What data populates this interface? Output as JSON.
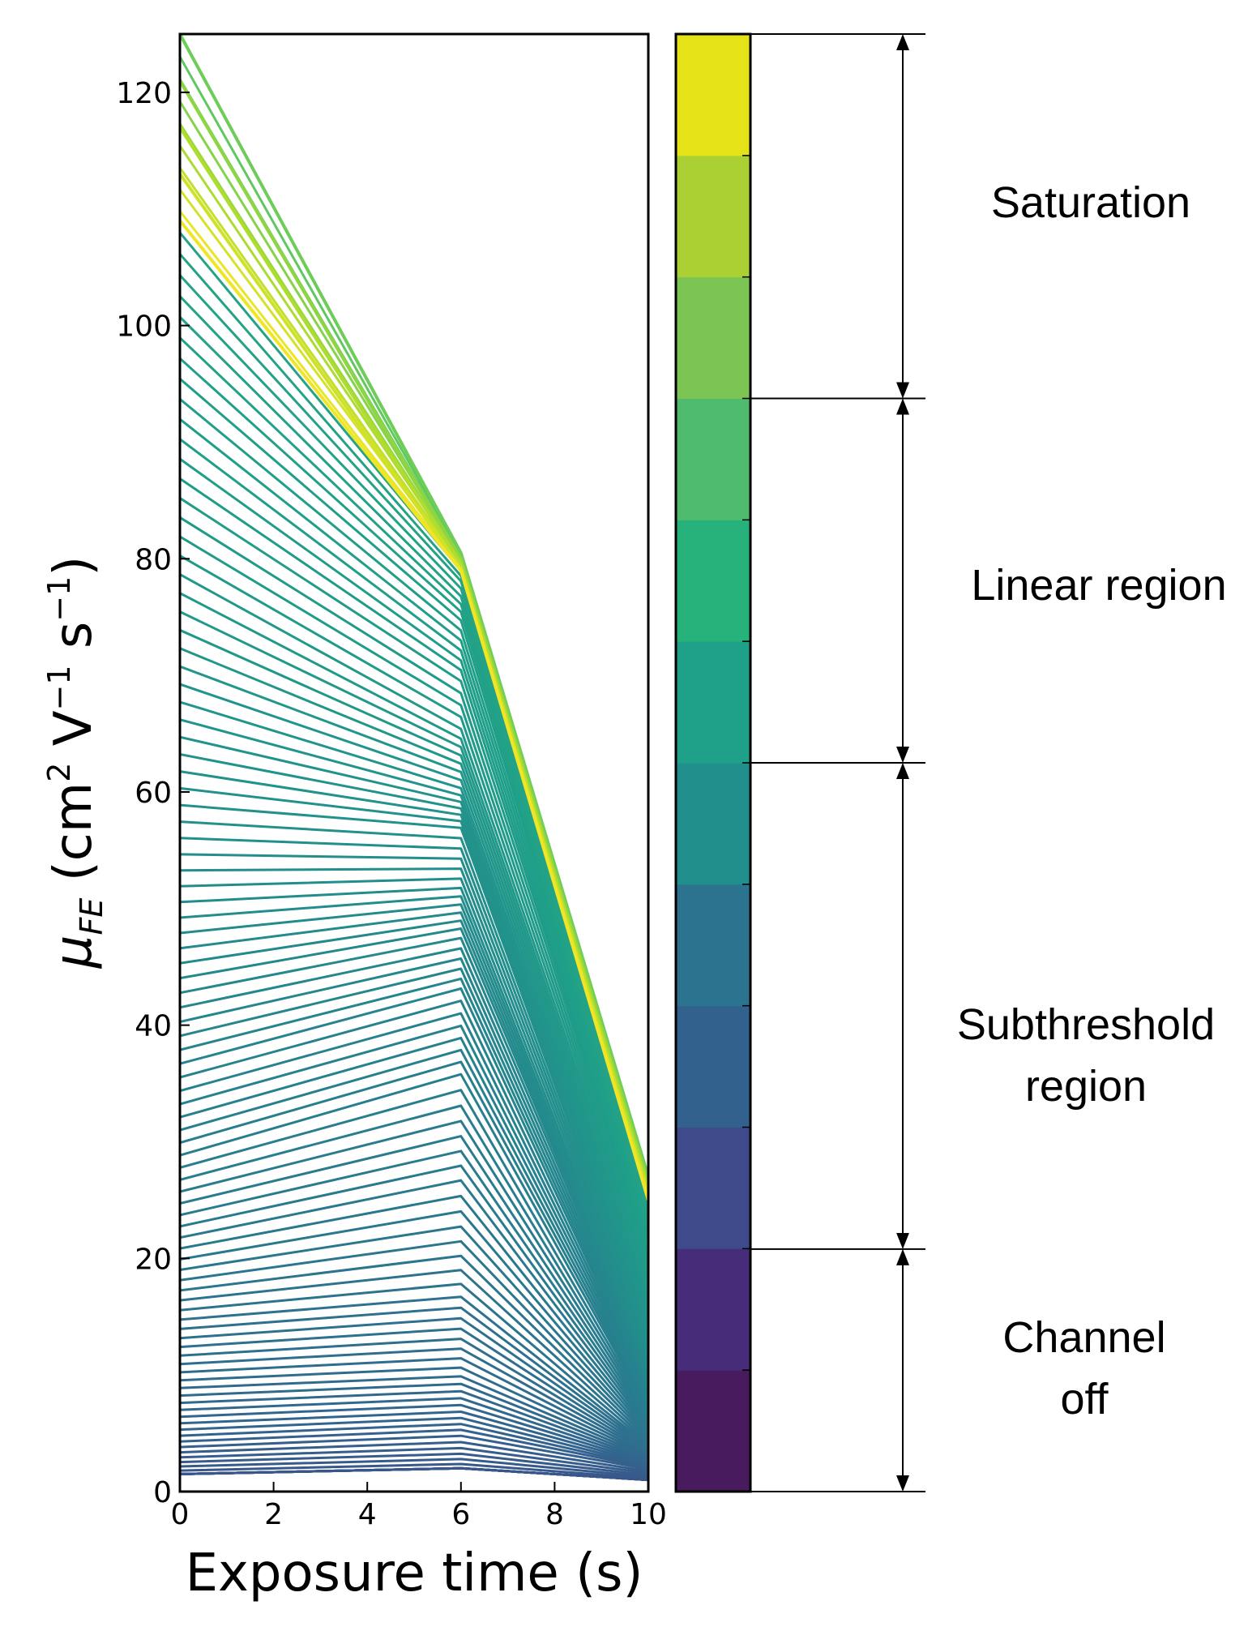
{
  "chart_data": {
    "type": "line",
    "xlabel": "Exposure time (s)",
    "ylabel_prefix": "μ",
    "ylabel_sub": "FE",
    "ylabel_units": {
      "base1": " (cm",
      "sup1": "2",
      "base2": " V",
      "sup2": "−1",
      "base3": " s",
      "sup3": "−1",
      "end": ")"
    },
    "xlim": [
      0,
      10
    ],
    "ylim": [
      0,
      125
    ],
    "xticks": [
      0,
      2,
      4,
      6,
      8,
      10
    ],
    "yticks": [
      0,
      20,
      40,
      60,
      80,
      100,
      120
    ],
    "x": [
      0,
      6,
      10
    ],
    "grid": false,
    "series_description": "family of ~110 piecewise-linear curves; value at t=0 spans 0–125, at t=6 and t=10 values shown are endpoints read from curves",
    "series_samples": [
      {
        "values": [
          125,
          80.5,
          27
        ]
      },
      {
        "values": [
          118,
          80,
          26
        ]
      },
      {
        "values": [
          108,
          79,
          25
        ]
      },
      {
        "values": [
          104,
          78,
          24
        ]
      },
      {
        "values": [
          96,
          75,
          22
        ]
      },
      {
        "values": [
          86,
          70,
          20
        ]
      },
      {
        "values": [
          78,
          65,
          18
        ]
      },
      {
        "values": [
          67,
          60,
          15
        ]
      },
      {
        "values": [
          59,
          57,
          13
        ]
      },
      {
        "values": [
          51,
          52,
          11
        ]
      },
      {
        "values": [
          43.5,
          48,
          10
        ]
      },
      {
        "values": [
          36.5,
          43,
          8.5
        ]
      },
      {
        "values": [
          29,
          36,
          7
        ]
      },
      {
        "values": [
          22,
          27,
          5.5
        ]
      },
      {
        "values": [
          15,
          17,
          4
        ]
      },
      {
        "values": [
          9,
          10,
          3
        ]
      },
      {
        "values": [
          4,
          5,
          2
        ]
      },
      {
        "values": [
          1.5,
          2,
          1
        ]
      }
    ]
  },
  "colorbar": {
    "colors": [
      "#481b5e",
      "#472c7a",
      "#3e4a89",
      "#33618d",
      "#2b738e",
      "#21908c",
      "#1fa088",
      "#26b27a",
      "#4ebb6e",
      "#7cc555",
      "#abd034",
      "#e5e318"
    ]
  },
  "regions": [
    {
      "lines": [
        "Saturation"
      ]
    },
    {
      "lines": [
        "Linear region"
      ]
    },
    {
      "lines": [
        "Subthreshold",
        "region"
      ]
    },
    {
      "lines": [
        "Channel",
        "off"
      ]
    }
  ],
  "region_bounds": [
    125,
    93.75,
    62.5,
    20.8,
    0
  ]
}
